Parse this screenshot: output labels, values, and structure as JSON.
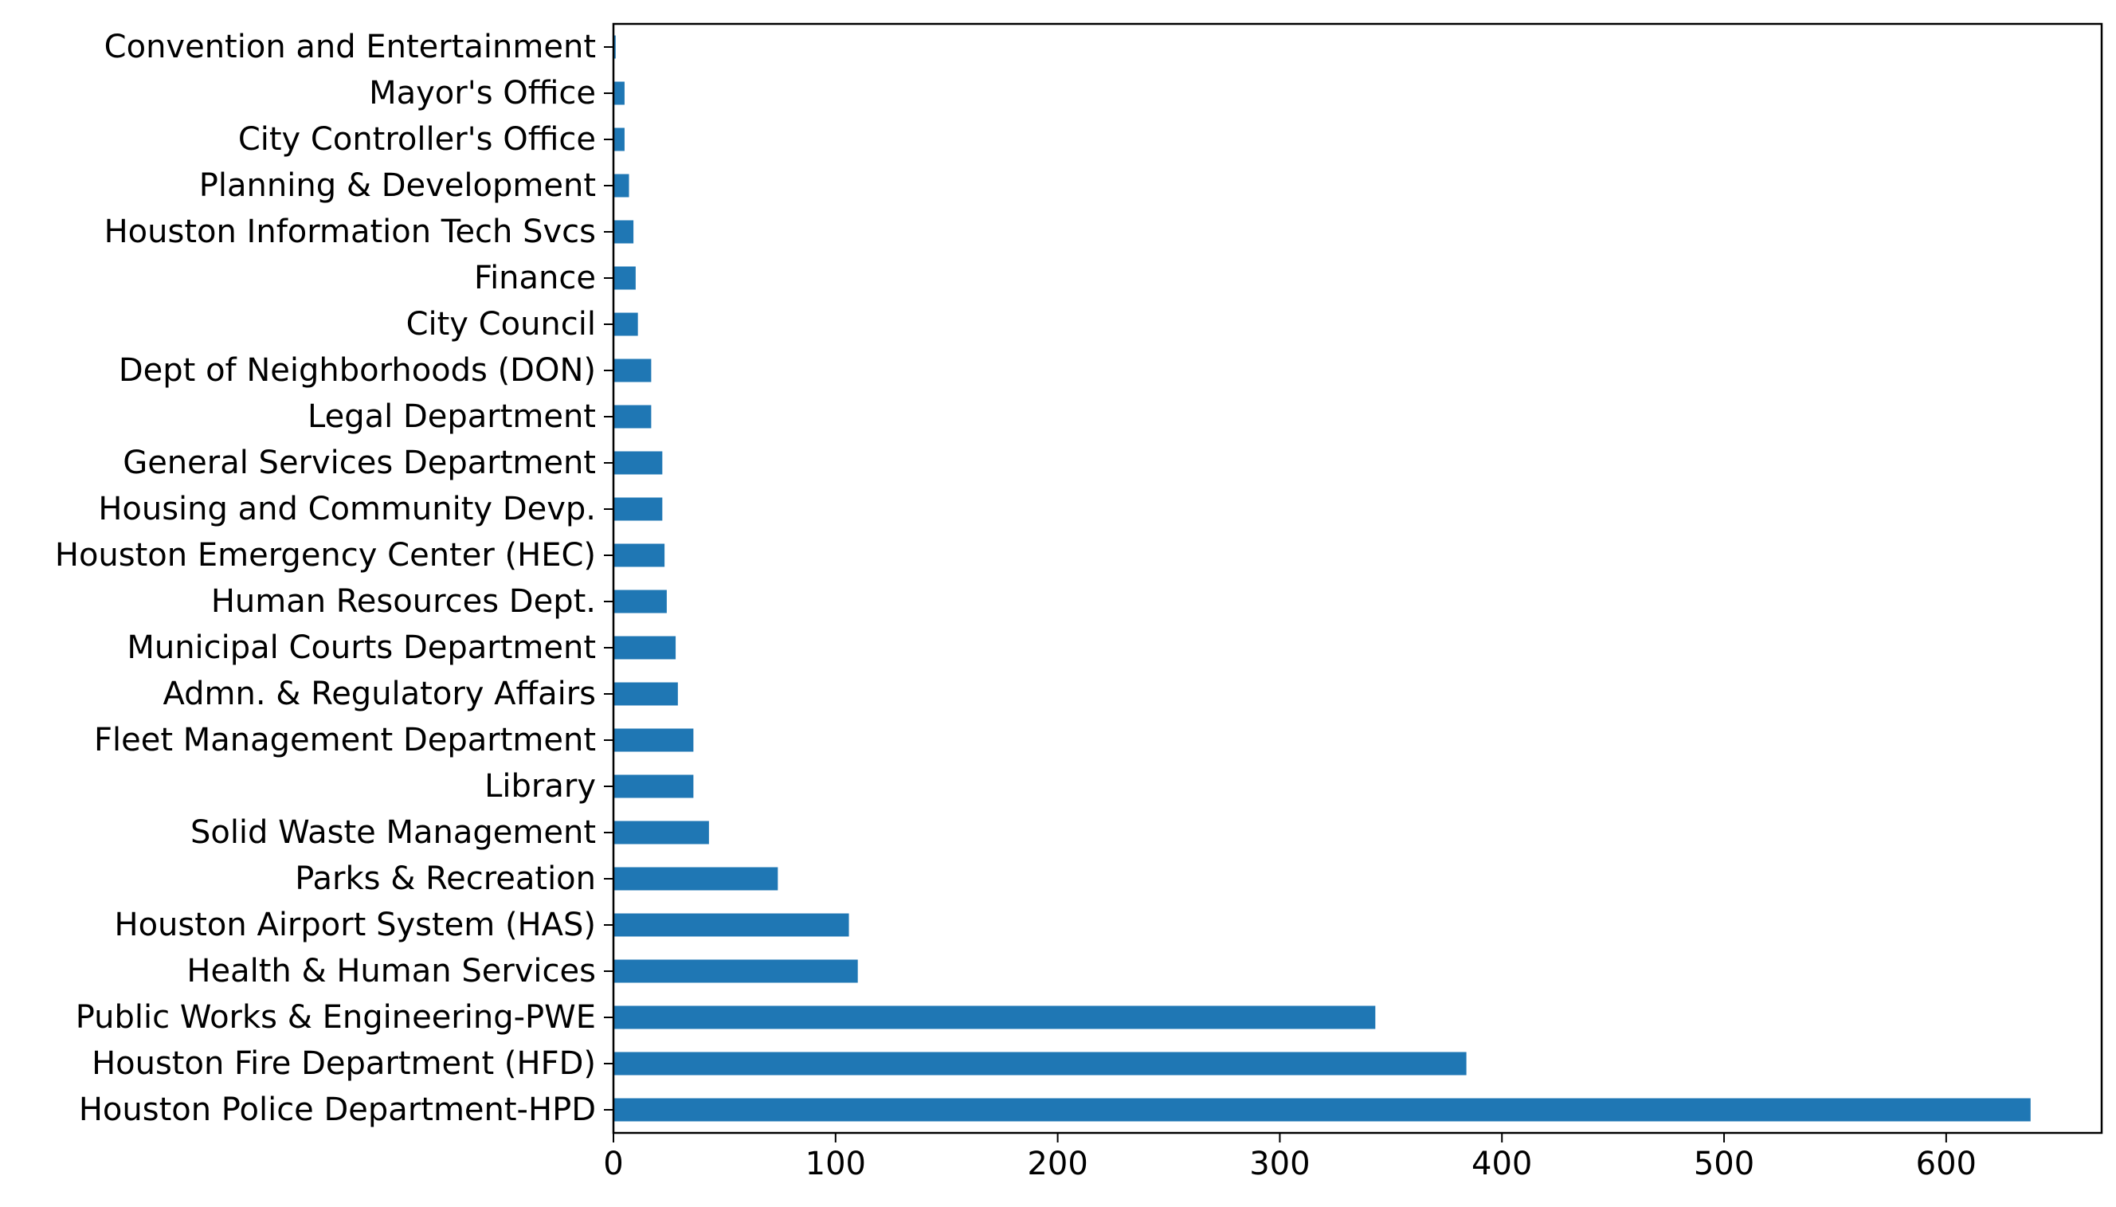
{
  "chart_data": {
    "type": "bar",
    "orientation": "horizontal",
    "title": "",
    "xlabel": "",
    "ylabel": "",
    "categories": [
      "Houston Police Department-HPD",
      "Houston Fire Department (HFD)",
      "Public Works & Engineering-PWE",
      "Health & Human Services",
      "Houston Airport System (HAS)",
      "Parks & Recreation",
      "Solid Waste Management",
      "Library",
      "Fleet Management Department",
      "Admn. & Regulatory Affairs",
      "Municipal Courts Department",
      "Human Resources Dept.",
      "Houston Emergency Center (HEC)",
      "Housing and Community Devp.",
      "General Services Department",
      "Legal Department",
      "Dept of Neighborhoods (DON)",
      "City Council",
      "Finance",
      "Houston Information Tech Svcs",
      "Planning & Development",
      "City Controller's Office",
      "Mayor's Office",
      "Convention and Entertainment"
    ],
    "values": [
      638,
      384,
      343,
      110,
      106,
      74,
      43,
      36,
      36,
      29,
      28,
      24,
      23,
      22,
      22,
      17,
      17,
      11,
      10,
      9,
      7,
      5,
      5,
      1
    ],
    "xlim": [
      0,
      670
    ],
    "xticks": [
      0,
      100,
      200,
      300,
      400,
      500,
      600
    ],
    "grid": false,
    "legend": "none",
    "bar_color": "#1f77b4"
  }
}
